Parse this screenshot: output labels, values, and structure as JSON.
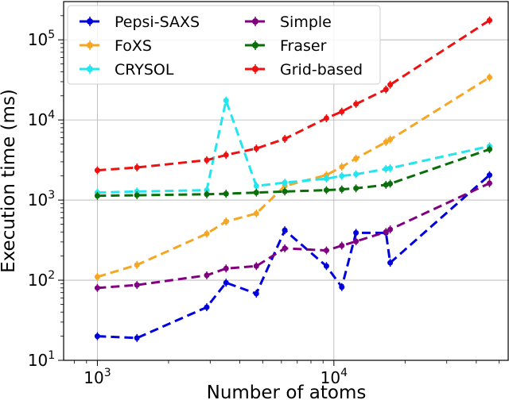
{
  "chart_data": {
    "type": "line",
    "xlabel": "Number of atoms",
    "ylabel": "Execution time (ms)",
    "xscale": "log",
    "yscale": "log",
    "xlim": [
      720,
      55000
    ],
    "ylim": [
      10,
      300000
    ],
    "grid": true,
    "legend_position": "top-left",
    "legend_columns": 2,
    "x_ticks": [
      {
        "value": 1000,
        "base": "10",
        "exp": "3"
      },
      {
        "value": 10000,
        "base": "10",
        "exp": "4"
      }
    ],
    "y_ticks": [
      {
        "value": 10,
        "base": "10",
        "exp": "1"
      },
      {
        "value": 100,
        "base": "10",
        "exp": "2"
      },
      {
        "value": 1000,
        "base": "10",
        "exp": "3"
      },
      {
        "value": 10000,
        "base": "10",
        "exp": "4"
      },
      {
        "value": 100000,
        "base": "10",
        "exp": "5"
      }
    ],
    "series": [
      {
        "name": "Pepsi-SAXS",
        "color": "#0000dd",
        "points": [
          [
            1000,
            20
          ],
          [
            1470,
            19
          ],
          [
            2900,
            46
          ],
          [
            3500,
            93
          ],
          [
            4700,
            68
          ],
          [
            6200,
            420
          ],
          [
            9300,
            150
          ],
          [
            10800,
            82
          ],
          [
            12400,
            390
          ],
          [
            16600,
            390
          ],
          [
            17300,
            165
          ],
          [
            45500,
            2050
          ]
        ]
      },
      {
        "name": "FoXS",
        "color": "#f5a623",
        "points": [
          [
            1000,
            110
          ],
          [
            1470,
            155
          ],
          [
            2900,
            380
          ],
          [
            3500,
            540
          ],
          [
            4700,
            680
          ],
          [
            6200,
            1500
          ],
          [
            9300,
            2050
          ],
          [
            10800,
            2600
          ],
          [
            12400,
            3300
          ],
          [
            16600,
            5300
          ],
          [
            17300,
            5700
          ],
          [
            45500,
            34000
          ]
        ]
      },
      {
        "name": "CRYSOL",
        "color": "#22e5ee",
        "points": [
          [
            1000,
            1240
          ],
          [
            1470,
            1280
          ],
          [
            2900,
            1330
          ],
          [
            3500,
            17500
          ],
          [
            4700,
            1500
          ],
          [
            6200,
            1650
          ],
          [
            9300,
            1850
          ],
          [
            10800,
            2000
          ],
          [
            12400,
            2100
          ],
          [
            16600,
            2450
          ],
          [
            17300,
            2500
          ],
          [
            45500,
            4700
          ]
        ]
      },
      {
        "name": "Simple",
        "color": "#800080",
        "points": [
          [
            1000,
            80
          ],
          [
            1470,
            87
          ],
          [
            2900,
            115
          ],
          [
            3500,
            140
          ],
          [
            4700,
            150
          ],
          [
            6200,
            250
          ],
          [
            9300,
            235
          ],
          [
            10800,
            270
          ],
          [
            12400,
            305
          ],
          [
            16600,
            400
          ],
          [
            17300,
            430
          ],
          [
            45500,
            1620
          ]
        ]
      },
      {
        "name": "Fraser",
        "color": "#0a6e0a",
        "points": [
          [
            1000,
            1130
          ],
          [
            1470,
            1150
          ],
          [
            2900,
            1180
          ],
          [
            3500,
            1200
          ],
          [
            4700,
            1240
          ],
          [
            6200,
            1280
          ],
          [
            9300,
            1330
          ],
          [
            10800,
            1360
          ],
          [
            12400,
            1400
          ],
          [
            16600,
            1550
          ],
          [
            17300,
            1600
          ],
          [
            45500,
            4300
          ]
        ]
      },
      {
        "name": "Grid-based",
        "color": "#ee1111",
        "points": [
          [
            1000,
            2350
          ],
          [
            1470,
            2550
          ],
          [
            2900,
            3150
          ],
          [
            3500,
            3650
          ],
          [
            4700,
            4400
          ],
          [
            6200,
            5800
          ],
          [
            9300,
            10500
          ],
          [
            10800,
            12700
          ],
          [
            12400,
            15800
          ],
          [
            16600,
            24000
          ],
          [
            17300,
            27500
          ],
          [
            45500,
            175000
          ]
        ]
      }
    ]
  }
}
